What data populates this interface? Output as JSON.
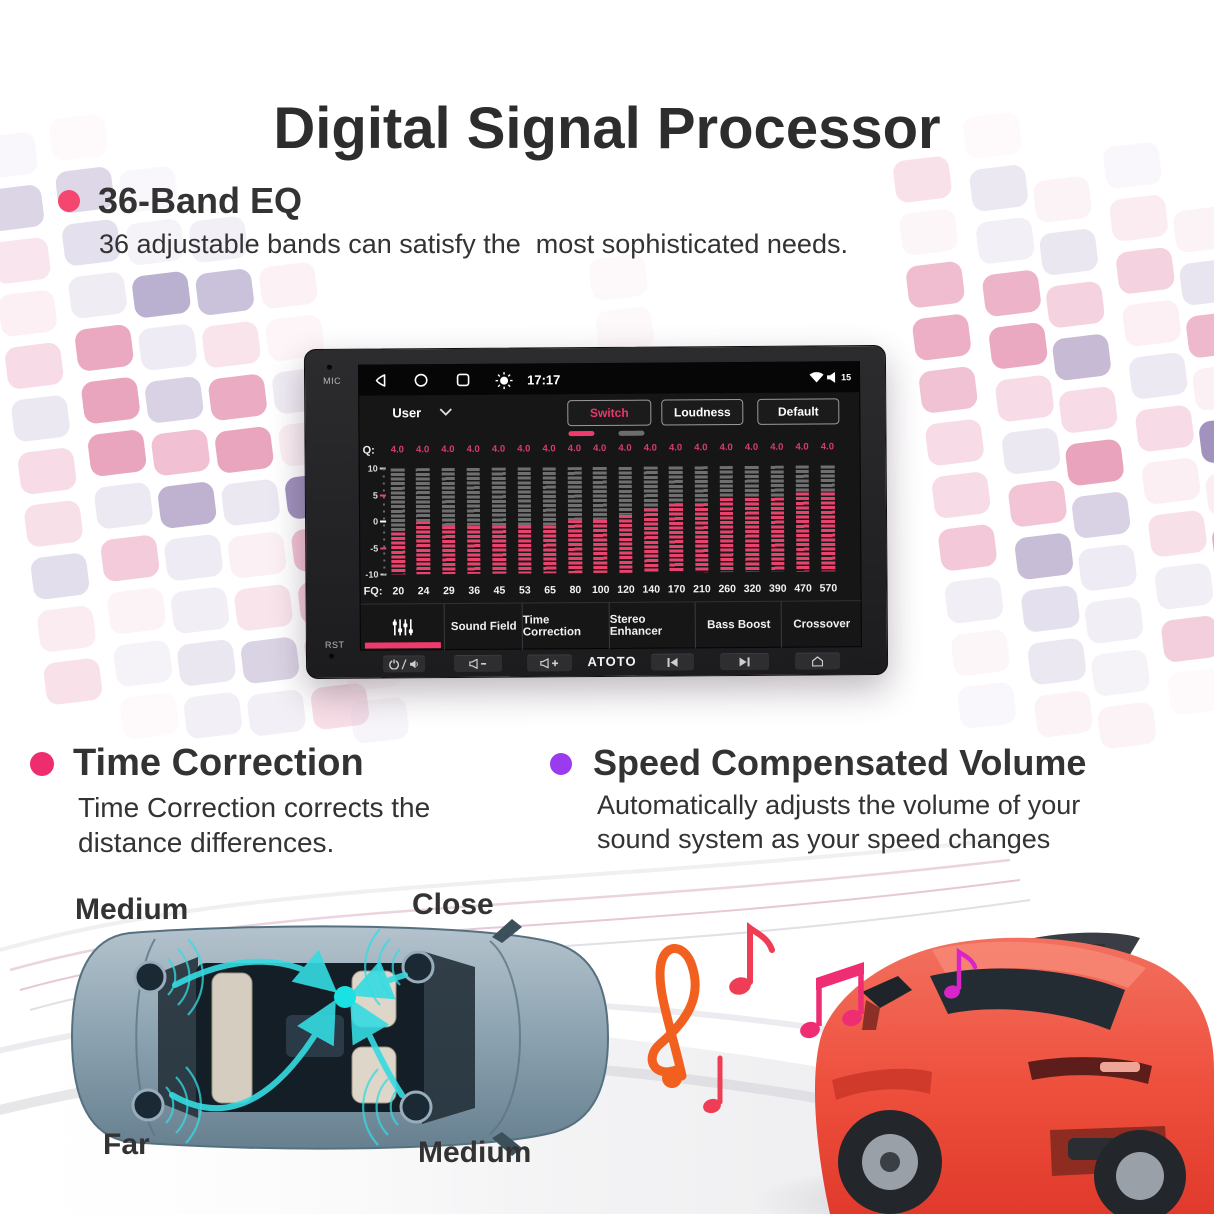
{
  "title": "Digital Signal Processor",
  "colors": {
    "accent_pink": "#ee3a6c",
    "accent_purple": "#9b3bf0",
    "eq_bar_pink": "#e8436e",
    "eq_bar_gray": "#6f6f6f",
    "cyan": "#1ae2e2"
  },
  "sections": {
    "eq": {
      "heading": "36-Band EQ",
      "description": "36 adjustable bands can satisfy the  most sophisticated needs."
    },
    "time_correction": {
      "heading": "Time Correction",
      "description_line1": "Time Correction corrects the",
      "description_line2": "distance differences."
    },
    "speed_compensated_volume": {
      "heading": "Speed Compensated Volume",
      "description_line1": "Automatically adjusts the volume of your",
      "description_line2": "sound system as your speed changes"
    }
  },
  "car_diagram": {
    "labels": {
      "top_left": "Medium",
      "top_right": "Close",
      "bottom_left": "Far",
      "bottom_right": "Medium"
    }
  },
  "head_unit": {
    "mic_label": "MIC",
    "rst_label": "RST",
    "brand": "ATOTO",
    "status_bar": {
      "time": "17:17",
      "volume_level": "15",
      "icons": [
        "back-icon",
        "circle-home-icon",
        "recents-icon",
        "brightness-icon",
        "wifi-icon",
        "speaker-icon"
      ]
    },
    "hardware_buttons": [
      "power-mute-button",
      "volume-down-button",
      "volume-up-button",
      "prev-track-button",
      "next-track-button",
      "home-button"
    ],
    "eq": {
      "preset": "User",
      "switch_label": "Switch",
      "loudness_label": "Loudness",
      "default_label": "Default",
      "q_label": "Q:",
      "q_values": [
        "4.0",
        "4.0",
        "4.0",
        "4.0",
        "4.0",
        "4.0",
        "4.0",
        "4.0",
        "4.0",
        "4.0",
        "4.0",
        "4.0",
        "4.0",
        "4.0",
        "4.0",
        "4.0",
        "4.0",
        "4.0"
      ],
      "y_ticks": [
        "10",
        "5",
        "0",
        "-5",
        "-10"
      ],
      "fq_label": "FQ:",
      "frequencies": [
        "20",
        "24",
        "29",
        "36",
        "45",
        "53",
        "65",
        "80",
        "100",
        "120",
        "140",
        "170",
        "210",
        "260",
        "320",
        "390",
        "470",
        "570"
      ],
      "gains_db": [
        -2,
        0,
        -1,
        -1,
        -1,
        -1,
        -1,
        0,
        0,
        1,
        2,
        3,
        3,
        4,
        4,
        4,
        5,
        5
      ],
      "gain_range": [
        -10,
        10
      ],
      "tabs": [
        "Sound Field",
        "Time Correction",
        "Stereo Enhancer",
        "Bass Boost",
        "Crossover"
      ]
    }
  }
}
